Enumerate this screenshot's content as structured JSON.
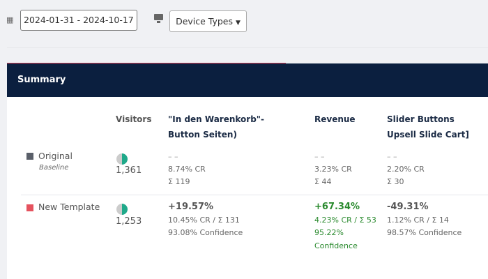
{
  "toolbar": {
    "date_range": "2024-01-31 - 2024-10-17",
    "device_types_label": "Device Types"
  },
  "card": {
    "title": "Summary"
  },
  "columns": {
    "visitors": "Visitors",
    "goal1": "\"In den Warenkorb\"-Button Seiten)",
    "revenue": "Revenue",
    "goal3": "Slider Buttons Upsell Slide Cart]"
  },
  "rows": [
    {
      "name": "Original",
      "sub": "Baseline",
      "color": "#5a5f69",
      "visitors": "1,361",
      "goal1": {
        "delta": "– –",
        "cr": "8.74% CR",
        "sum": "Σ 119"
      },
      "revenue": {
        "delta": "– –",
        "cr": "3.23% CR",
        "sum": "Σ 44"
      },
      "goal3": {
        "delta": "– –",
        "cr": "2.20% CR",
        "sum": "Σ 30"
      }
    },
    {
      "name": "New Template",
      "color": "#e5525e",
      "visitors": "1,253",
      "goal1": {
        "delta": "+19.57%",
        "cr": "10.45% CR / Σ 131",
        "conf": "93.08% Confidence"
      },
      "revenue": {
        "delta": "+67.34%",
        "cr": "4.23% CR / Σ 53",
        "conf1": "95.22%",
        "conf2": "Confidence"
      },
      "goal3": {
        "delta": "-49.31%",
        "cr": "1.12% CR / Σ 14",
        "conf": "98.57% Confidence"
      }
    }
  ]
}
